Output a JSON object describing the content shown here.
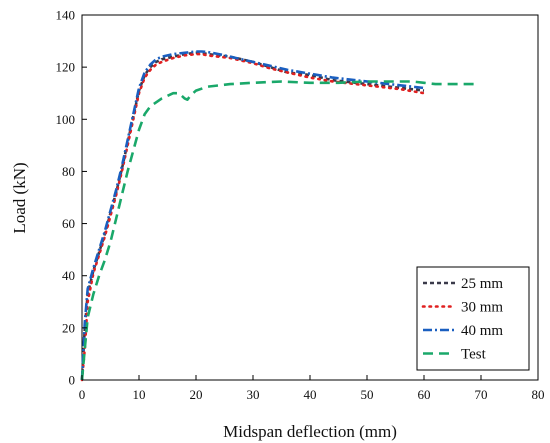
{
  "chart_data": {
    "type": "line",
    "title": "",
    "xlabel": "Midspan deflection (mm)",
    "ylabel": "Load (kN)",
    "xlim": [
      0,
      80
    ],
    "ylim": [
      0,
      140
    ],
    "xticks": [
      0,
      10,
      20,
      30,
      40,
      50,
      60,
      70,
      80
    ],
    "yticks": [
      0,
      20,
      40,
      60,
      80,
      100,
      120,
      140
    ],
    "grid": false,
    "legend_position": "bottom-right",
    "series": [
      {
        "name": "25 mm",
        "color": "#3a3a4a",
        "dash": "short-dash",
        "x": [
          0,
          0.5,
          1,
          2,
          3,
          4,
          5,
          6,
          7,
          8,
          9,
          10,
          11,
          12,
          13,
          14,
          16,
          18,
          20,
          21,
          22,
          24,
          26,
          28,
          30,
          33,
          36,
          40,
          44,
          48,
          52,
          56,
          60
        ],
        "y": [
          0,
          20,
          33,
          42,
          49,
          56,
          64,
          72,
          81,
          91,
          101,
          111,
          117,
          120,
          122,
          123,
          124,
          125,
          125.5,
          125.5,
          125,
          124.5,
          124,
          123,
          122,
          120,
          118,
          117,
          115,
          114,
          113,
          112,
          111
        ]
      },
      {
        "name": "30 mm",
        "color": "#e02020",
        "dash": "dotted",
        "x": [
          0,
          0.5,
          1,
          2,
          3,
          4,
          5,
          6,
          7,
          8,
          9,
          10,
          11,
          12,
          13,
          14,
          16,
          18,
          20,
          21,
          22,
          24,
          26,
          28,
          30,
          33,
          36,
          40,
          44,
          48,
          52,
          56,
          60
        ],
        "y": [
          0,
          12,
          30,
          41,
          48,
          55,
          63,
          71,
          80,
          90,
          100,
          110,
          116,
          119,
          121,
          122,
          123.5,
          124.5,
          125,
          125,
          124.5,
          124,
          123.5,
          122.5,
          121.5,
          119.5,
          118,
          116,
          114.5,
          113.5,
          112.5,
          111.5,
          110
        ]
      },
      {
        "name": "40 mm",
        "color": "#1a5fc0",
        "dash": "dash-dot",
        "x": [
          0,
          0.5,
          1,
          2,
          3,
          4,
          5,
          6,
          7,
          8,
          9,
          10,
          11,
          12,
          13,
          14,
          16,
          18,
          20,
          21,
          22,
          24,
          26,
          28,
          30,
          33,
          36,
          40,
          44,
          48,
          52,
          56,
          60
        ],
        "y": [
          0,
          22,
          35,
          43,
          50,
          57,
          65,
          73,
          82,
          92,
          102,
          112,
          118,
          121,
          123,
          124,
          125,
          125.5,
          126,
          126,
          125.8,
          125,
          124,
          123,
          122,
          120.5,
          119,
          117.5,
          116,
          115,
          114,
          113,
          112
        ]
      },
      {
        "name": "Test",
        "color": "#1aa86a",
        "dash": "long-dash",
        "x": [
          0,
          0.5,
          1,
          2,
          3,
          4,
          5,
          6,
          7,
          8,
          9,
          10,
          11,
          12,
          14,
          16,
          17,
          18,
          18.5,
          19,
          20,
          22,
          24,
          26,
          30,
          35,
          40,
          45,
          50,
          55,
          58,
          60,
          62,
          65,
          69
        ],
        "y": [
          0,
          12,
          24,
          33,
          40,
          46,
          53,
          62,
          71,
          80,
          88,
          96,
          102,
          105,
          108,
          110,
          110,
          108,
          107.5,
          109,
          111,
          112.5,
          113,
          113.5,
          114,
          114.5,
          114,
          114,
          114.5,
          114.5,
          114.5,
          114,
          113.5,
          113.5,
          113.5
        ]
      }
    ]
  }
}
